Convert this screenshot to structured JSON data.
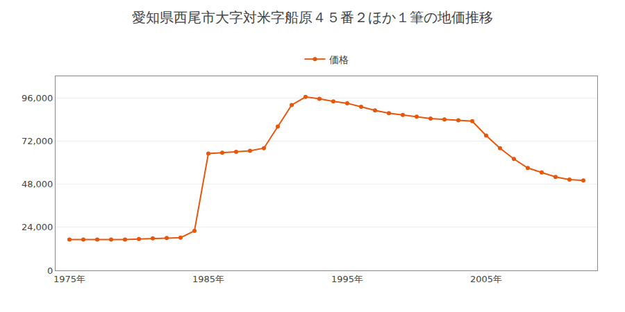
{
  "chart_data": {
    "type": "line",
    "title": "愛知県西尾市大字対米字船原４５番２ほか１筆の地価推移",
    "x": [
      1975,
      1976,
      1977,
      1978,
      1979,
      1980,
      1981,
      1982,
      1983,
      1984,
      1985,
      1986,
      1987,
      1988,
      1989,
      1990,
      1991,
      1992,
      1993,
      1994,
      1995,
      1996,
      1997,
      1998,
      1999,
      2000,
      2001,
      2002,
      2003,
      2004,
      2005,
      2006,
      2007,
      2008,
      2009,
      2010,
      2011,
      2012
    ],
    "series": [
      {
        "name": "価格",
        "color": "#E8560A",
        "marker": "circle",
        "values": [
          17200,
          17200,
          17200,
          17200,
          17200,
          17500,
          17800,
          18000,
          18200,
          22000,
          65000,
          65500,
          66000,
          66500,
          68000,
          80000,
          92000,
          96500,
          95500,
          94000,
          93000,
          91000,
          89000,
          87500,
          86500,
          85500,
          84500,
          84000,
          83500,
          83000,
          75000,
          68000,
          62000,
          57000,
          54500,
          52000,
          50500,
          50000
        ]
      }
    ],
    "xlim": [
      1974,
      2013
    ],
    "xticks": [
      {
        "value": 1975,
        "label": "1975年"
      },
      {
        "value": 1985,
        "label": "1985年"
      },
      {
        "value": 1995,
        "label": "1995年"
      },
      {
        "value": 2005,
        "label": "2005年"
      }
    ],
    "ylim": [
      0,
      108000
    ],
    "yticks": [
      0,
      {
        "value": 24000,
        "label": "24,000"
      },
      {
        "value": 48000,
        "label": "48,000"
      },
      {
        "value": 72000,
        "label": "72,000"
      },
      {
        "value": 96000,
        "label": "96,000"
      }
    ],
    "grid": "y",
    "legend": "top"
  }
}
